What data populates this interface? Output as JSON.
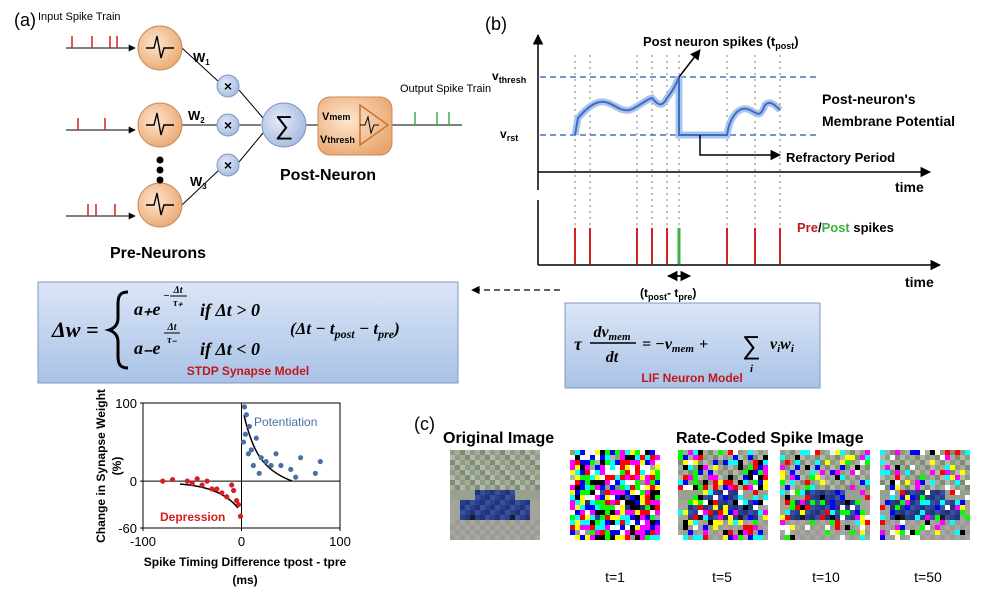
{
  "panel_a": {
    "label": "(a)",
    "input_spike_train": "Input Spike Train",
    "weights": [
      {
        "w": "W",
        "sub": "1"
      },
      {
        "w": "W",
        "sub": "2"
      },
      {
        "w": "W",
        "sub": "3"
      }
    ],
    "multiply": "×",
    "sum": "∑",
    "vmem": {
      "v": "V",
      "sub": "mem"
    },
    "vthresh": {
      "v": "V",
      "sub": "thresh"
    },
    "post_neuron": "Post-Neuron",
    "output_spike_train": "Output Spike Train",
    "pre_neurons": "Pre-Neurons"
  },
  "panel_b": {
    "label": "(b)",
    "post_spikes": {
      "text": "Post neuron spikes (t",
      "sub": "post",
      "close": ")"
    },
    "v_thresh": {
      "v": "v",
      "sub": "thresh"
    },
    "v_rst": {
      "v": "v",
      "sub": "rst"
    },
    "membrane": [
      "Post-neuron's",
      "Membrane Potential"
    ],
    "refractory": "Refractory Period",
    "time": "time",
    "pre": "Pre",
    "slash": "/",
    "post": "Post",
    "spikes": " spikes",
    "delta": {
      "open": "(t",
      "sub1": "post",
      "mid": "- t",
      "sub2": "pre",
      "close": ")"
    }
  },
  "stdp": {
    "lhs": "Δw =",
    "rows": [
      {
        "base": "a₊e",
        "sign": "−",
        "num": "Δt",
        "den": "τ₊",
        "cond": "if Δt > 0"
      },
      {
        "base": "a₋e",
        "num": "Δt",
        "den": "τ₋",
        "cond": "if Δt < 0"
      }
    ],
    "factor": {
      "open": "(Δt − t",
      "sub1": "post",
      "mid": " − t",
      "sub2": "pre",
      "close": ")"
    },
    "caption": "STDP Synapse Model"
  },
  "lif": {
    "tau": "τ",
    "num": "dv",
    "num_sub": "mem",
    "den": "dt",
    "rhs": "= −v",
    "rhs_sub": "mem",
    "plus": "+",
    "sum": "∑",
    "sum_sub": "i",
    "term": "v",
    "term_sub1": "i",
    "term2": "w",
    "term_sub2": "i",
    "caption": "LIF Neuron Model"
  },
  "panel_c": {
    "label": "(c)",
    "original": "Original Image",
    "rate_coded": "Rate-Coded Spike Image",
    "times": [
      "t=1",
      "t=5",
      "t=10",
      "t=50"
    ]
  },
  "chart_data": {
    "type": "scatter",
    "ylabel": [
      "Change in Synapse Weight",
      "(%)"
    ],
    "xlabel": [
      "Spike Timing Difference tpost - tpre",
      "(ms)"
    ],
    "series": [
      {
        "name": "Potentiation",
        "color": "#4a6fa5",
        "x": [
          3,
          5,
          8,
          4,
          2,
          10,
          15,
          20,
          25,
          30,
          12,
          18,
          40,
          50,
          55,
          75,
          80,
          60,
          7,
          35
        ],
        "values": [
          95,
          85,
          70,
          60,
          50,
          40,
          55,
          30,
          25,
          20,
          20,
          10,
          20,
          15,
          5,
          10,
          25,
          30,
          35,
          35
        ]
      },
      {
        "name": "Depression",
        "color": "#d42020",
        "x": [
          -80,
          -70,
          -55,
          -50,
          -40,
          -35,
          -25,
          -20,
          -15,
          -10,
          -5,
          -3,
          -8,
          -30,
          -45,
          -1
        ],
        "values": [
          0,
          2,
          0,
          -3,
          -5,
          0,
          -10,
          -15,
          -20,
          -5,
          -25,
          -30,
          -12,
          -10,
          3,
          -45
        ]
      }
    ],
    "xlim": [
      -100,
      100
    ],
    "ylim": [
      -60,
      100
    ],
    "xticks": [
      -100,
      0,
      100
    ],
    "yticks": [
      -60,
      0,
      100
    ]
  }
}
